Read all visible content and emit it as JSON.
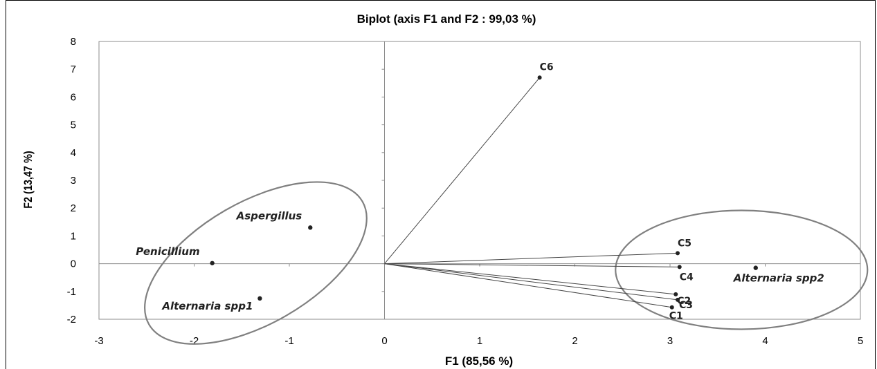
{
  "chart_data": {
    "type": "scatter",
    "title": "Biplot (axis F1 and F2 : 99,03 %)",
    "xlabel": "F1 (85,56 %)",
    "ylabel": "F2 (13,47 %)",
    "xlim": [
      -3,
      5
    ],
    "ylim": [
      -2,
      8
    ],
    "x_ticks": [
      "-3",
      "-2",
      "-1",
      "0",
      "1",
      "2",
      "3",
      "4",
      "5"
    ],
    "y_ticks": [
      "-2",
      "-1",
      "0",
      "1",
      "2",
      "3",
      "4",
      "5",
      "6",
      "7",
      "8"
    ],
    "grid": false,
    "variables": [
      {
        "name": "C6",
        "x": 1.63,
        "y": 6.7
      },
      {
        "name": "C5",
        "x": 3.08,
        "y": 0.38
      },
      {
        "name": "C4",
        "x": 3.1,
        "y": -0.12
      },
      {
        "name": "C2",
        "x": 3.06,
        "y": -1.1
      },
      {
        "name": "C3",
        "x": 3.08,
        "y": -1.3
      },
      {
        "name": "C1",
        "x": 3.02,
        "y": -1.57
      }
    ],
    "observations": [
      {
        "name": "Aspergillus",
        "x": -0.78,
        "y": 1.3
      },
      {
        "name": "Penicillium",
        "x": -1.81,
        "y": 0.02
      },
      {
        "name": "Alternaria spp1",
        "x": -1.31,
        "y": -1.25
      },
      {
        "name": "Alternaria spp2",
        "x": 3.9,
        "y": -0.15
      }
    ],
    "groups": [
      {
        "members": [
          "Aspergillus",
          "Penicillium",
          "Alternaria spp1"
        ]
      },
      {
        "members": [
          "C1",
          "C2",
          "C3",
          "C4",
          "C5",
          "Alternaria spp2"
        ]
      }
    ],
    "colors": {
      "axis": "#8c8c8c",
      "vector": "#444444",
      "point": "#222222",
      "ellipse": "#808080"
    }
  }
}
